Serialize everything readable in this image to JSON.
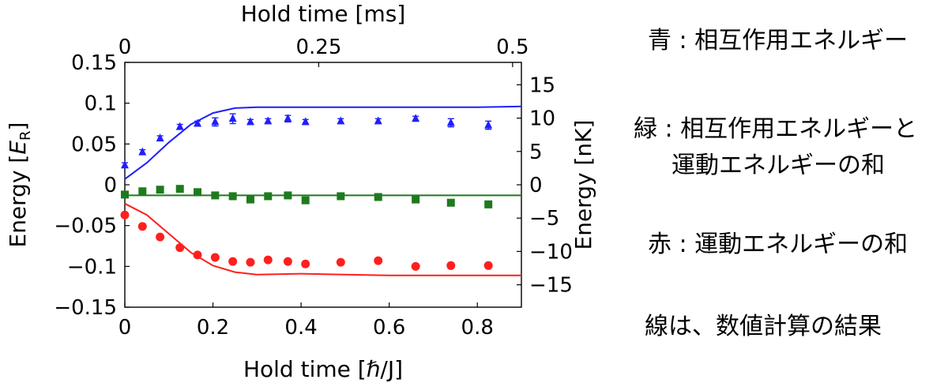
{
  "chart_data": {
    "type": "scatter",
    "title": "",
    "xlabel": "Hold time [ℏ/J]",
    "ylabel": "Energy [E_R]",
    "ylabel_parts": {
      "main": "Energy [",
      "italic": "E",
      "sub": "R",
      "close": "]"
    },
    "x2label": "Hold time [ms]",
    "y2label": "Energy [nK]",
    "xlim": [
      0,
      0.9
    ],
    "ylim": [
      -0.15,
      0.15
    ],
    "xticks": [
      0,
      0.2,
      0.4,
      0.6,
      0.8
    ],
    "xtick_labels": [
      "0",
      "0.2",
      "0.4",
      "0.6",
      "0.8"
    ],
    "yticks": [
      -0.15,
      -0.1,
      -0.05,
      0,
      0.05,
      0.1,
      0.15
    ],
    "ytick_labels": [
      "−0.15",
      "−0.1",
      "−0.05",
      "0",
      "0.05",
      "0.1",
      "0.15"
    ],
    "x2ticks": [
      0,
      0.44,
      0.88
    ],
    "x2tick_labels": [
      "0",
      "0.25",
      "0.5"
    ],
    "y2ticks": [
      -15,
      -10,
      -5,
      0,
      5,
      10,
      15
    ],
    "y2tick_labels": [
      "−15",
      "−10",
      "−5",
      "0",
      "5",
      "10",
      "15"
    ],
    "y2_per_ER": 122.4,
    "grid": false,
    "series": [
      {
        "name": "interaction energy",
        "color": "#1f1fff",
        "marker": "triangle",
        "x": [
          0,
          0.04,
          0.08,
          0.125,
          0.165,
          0.205,
          0.245,
          0.285,
          0.325,
          0.37,
          0.41,
          0.49,
          0.575,
          0.66,
          0.74,
          0.825
        ],
        "y": [
          0.024,
          0.04,
          0.057,
          0.071,
          0.075,
          0.077,
          0.081,
          0.077,
          0.078,
          0.081,
          0.077,
          0.078,
          0.078,
          0.081,
          0.076,
          0.073
        ],
        "err": [
          0.003,
          0.003,
          0.003,
          0.003,
          0.003,
          0.005,
          0.006,
          0.003,
          0.003,
          0.004,
          0.003,
          0.003,
          0.003,
          0.003,
          0.005,
          0.005
        ]
      },
      {
        "name": "interaction + kinetic energy",
        "color": "#1e7a1e",
        "marker": "square",
        "x": [
          0,
          0.04,
          0.08,
          0.125,
          0.165,
          0.205,
          0.245,
          0.285,
          0.325,
          0.37,
          0.41,
          0.49,
          0.575,
          0.66,
          0.74,
          0.825
        ],
        "y": [
          -0.012,
          -0.008,
          -0.006,
          -0.005,
          -0.009,
          -0.013,
          -0.014,
          -0.018,
          -0.014,
          -0.013,
          -0.019,
          -0.014,
          -0.015,
          -0.018,
          -0.022,
          -0.024
        ],
        "err": [
          0.002,
          0.003,
          0.002,
          0.002,
          0.002,
          0.002,
          0.004,
          0.002,
          0.002,
          0.002,
          0.002,
          0.002,
          0.002,
          0.002,
          0.003,
          0.004
        ]
      },
      {
        "name": "kinetic energy",
        "color": "#ff1f1f",
        "marker": "circle",
        "x": [
          0,
          0.04,
          0.08,
          0.125,
          0.165,
          0.205,
          0.245,
          0.285,
          0.325,
          0.37,
          0.41,
          0.49,
          0.575,
          0.66,
          0.74,
          0.825
        ],
        "y": [
          -0.037,
          -0.051,
          -0.064,
          -0.077,
          -0.086,
          -0.089,
          -0.094,
          -0.095,
          -0.092,
          -0.094,
          -0.097,
          -0.095,
          -0.093,
          -0.1,
          -0.099,
          -0.099
        ],
        "err": [
          0.002,
          0.002,
          0.002,
          0.002,
          0.002,
          0.002,
          0.002,
          0.002,
          0.002,
          0.002,
          0.002,
          0.002,
          0.002,
          0.002,
          0.003,
          0.002
        ]
      }
    ],
    "fit_lines": [
      {
        "name": "calculation: interaction energy",
        "color": "#1f1fff",
        "x": [
          0,
          0.05,
          0.1,
          0.15,
          0.2,
          0.25,
          0.3,
          0.4,
          0.5,
          0.6,
          0.7,
          0.8,
          0.9
        ],
        "y": [
          0.007,
          0.027,
          0.052,
          0.074,
          0.088,
          0.094,
          0.095,
          0.095,
          0.095,
          0.095,
          0.095,
          0.095,
          0.096
        ]
      },
      {
        "name": "calculation: sum",
        "color": "#1e7a1e",
        "x": [
          0,
          0.9
        ],
        "y": [
          -0.013,
          -0.013
        ]
      },
      {
        "name": "calculation: kinetic energy",
        "color": "#ff1f1f",
        "x": [
          0,
          0.05,
          0.1,
          0.15,
          0.2,
          0.25,
          0.3,
          0.4,
          0.5,
          0.6,
          0.7,
          0.8,
          0.9
        ],
        "y": [
          -0.023,
          -0.037,
          -0.06,
          -0.083,
          -0.099,
          -0.107,
          -0.11,
          -0.109,
          -0.11,
          -0.111,
          -0.111,
          -0.111,
          -0.111
        ]
      }
    ]
  },
  "legend": {
    "blue": "青 : 相互作用エネルギー",
    "green_line1": "緑 : 相互作用エネルギーと",
    "green_line2": "運動エネルギーの和",
    "red": "赤 : 運動エネルギーの和",
    "note": "線は、数値計算の結果"
  }
}
